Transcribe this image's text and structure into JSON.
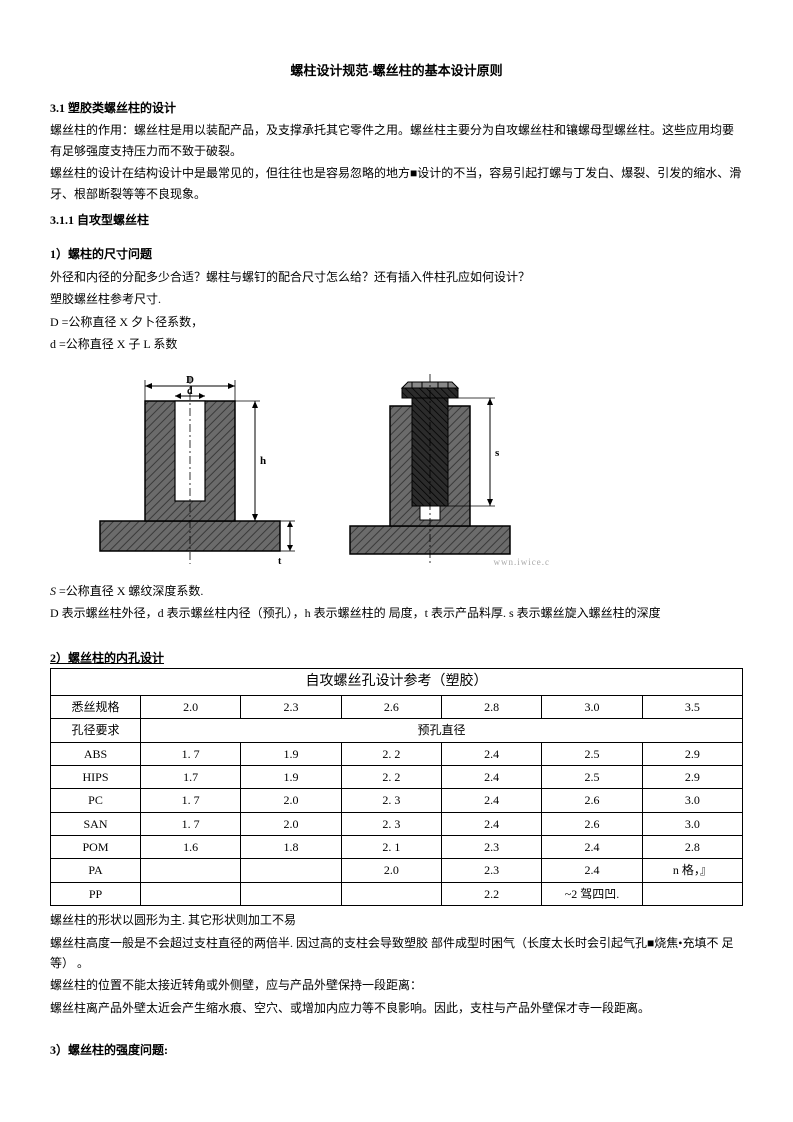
{
  "title": "螺柱设计规范-螺丝柱的基本设计原则",
  "s31": {
    "heading": "3.1 塑胶类螺丝柱的设计",
    "p1": "螺丝柱的作用：螺丝柱是用以装配产品，及支撑承托其它零件之用。螺丝柱主要分为自攻螺丝柱和镶螺母型螺丝柱。这些应用均要 有足够强度支持压力而不致于破裂。",
    "p2": "螺丝柱的设计在结构设计中是最常见的，但往往也是容易忽略的地方■设计的不当，容易引起打螺与丁发白、爆裂、引发的缩水、滑 牙、根部断裂等等不良现象。"
  },
  "s311": {
    "heading": "3.1.1 自攻型螺丝柱",
    "q1heading": "1）螺柱的尺寸问题",
    "q1p1": "外径和内径的分配多少合适？螺柱与螺钉的配合尺寸怎么给？还有插入件柱孔应如何设计？",
    "q1p2": "塑胶螺丝柱参考尺寸.",
    "q1p3": "D =公称直径 X 夕卜径系数，",
    "q1p4": "d =公称直径 X 子 L 系数",
    "afterdiag1": "S =公称直径 X 螺纹深度系数.",
    "afterdiag2": "D 表示螺丝柱外径，d 表示螺丝柱内径（预孔），h 表示螺丝柱的 局度，t 表示产品料厚.   s 表示螺丝旋入螺丝柱的深度"
  },
  "table": {
    "heading": "2）螺丝柱的内孔设计",
    "title": "自攻螺丝孔设计参考（塑胶）",
    "header_label": "悉丝规格",
    "sizes": [
      "2.0",
      "2.3",
      "2.6",
      "2.8",
      "3.0",
      "3.5"
    ],
    "row2_label": "孔径要求",
    "row2_span": "预孔直径",
    "rows": [
      {
        "mat": "ABS",
        "vals": [
          "1. 7",
          "1.9",
          "2. 2",
          "2.4",
          "2.5",
          "2.9"
        ]
      },
      {
        "mat": "HIPS",
        "vals": [
          "1.7",
          "1.9",
          "2. 2",
          "2.4",
          "2.5",
          "2.9"
        ]
      },
      {
        "mat": "PC",
        "vals": [
          "1. 7",
          "2.0",
          "2. 3",
          "2.4",
          "2.6",
          "3.0"
        ]
      },
      {
        "mat": "SAN",
        "vals": [
          "1. 7",
          "2.0",
          "2. 3",
          "2.4",
          "2.6",
          "3.0"
        ]
      },
      {
        "mat": "POM",
        "vals": [
          "1.6",
          "1.8",
          "2. 1",
          "2.3",
          "2.4",
          "2.8"
        ]
      },
      {
        "mat": "PA",
        "vals": [
          "",
          "",
          "2.0",
          "2.3",
          "2.4",
          "n 格，』"
        ]
      },
      {
        "mat": "PP",
        "vals": [
          "",
          "",
          "",
          "2.2",
          "~2 驾四凹.",
          ""
        ]
      }
    ]
  },
  "after_table": {
    "p1": "螺丝柱的形状以圆形为主. 其它形状则加工不易",
    "p2": "螺丝柱高度一般是不会超过支柱直径的两倍半. 因过高的支柱会导致塑胶 部件成型时困气（长度太长时会引起气孔■烧焦•充填不 足等） 。",
    "p3": "螺丝柱的位置不能太接近转角或外侧壁，应与产品外壁保持一段距离：",
    "p4": "螺丝柱离产品外壁太近会产生缩水痕、空穴、或增加内应力等不良影响。因此，支柱与产品外壁保才寺一段距离。"
  },
  "q3heading": "3）螺丝柱的强度问题:",
  "diagram": {
    "hatch": "#5a5a5a",
    "fill": "#6b6b6b",
    "darkfill": "#2b2b2b",
    "line": "#000000",
    "bg": "#ffffff",
    "watermark": "wwn.iwice.c"
  }
}
